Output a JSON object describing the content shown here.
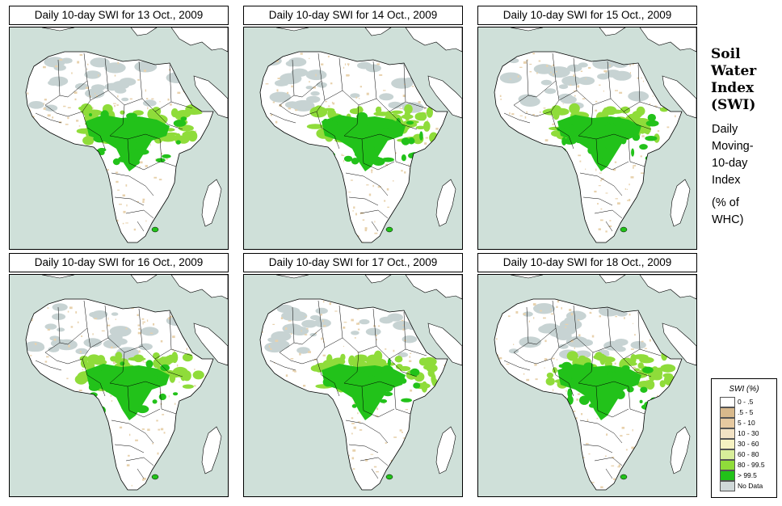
{
  "panels": [
    {
      "title": "Daily 10-day SWI for  13 Oct., 2009"
    },
    {
      "title": "Daily 10-day SWI for  14 Oct., 2009"
    },
    {
      "title": "Daily 10-day SWI for  15 Oct., 2009"
    },
    {
      "title": "Daily 10-day SWI for  16 Oct., 2009"
    },
    {
      "title": "Daily 10-day SWI for  17 Oct., 2009"
    },
    {
      "title": "Daily 10-day SWI for  18 Oct., 2009"
    }
  ],
  "side": {
    "title_lines": [
      "Soil",
      "Water",
      "Index",
      "(SWI)"
    ],
    "desc_lines": [
      "Daily",
      "Moving-",
      "10-day",
      "Index"
    ],
    "units_lines": [
      "(% of",
      " WHC)"
    ]
  },
  "legend": {
    "title": "SWI (%)",
    "items": [
      {
        "label": "0 - .5",
        "color": "#ffffff"
      },
      {
        "label": ".5 - 5",
        "color": "#d8b98c"
      },
      {
        "label": "5 - 10",
        "color": "#e6c9a0"
      },
      {
        "label": "10 - 30",
        "color": "#f2e2c4"
      },
      {
        "label": "30 - 60",
        "color": "#f6f2c2"
      },
      {
        "label": "60 - 80",
        "color": "#d8ee9a"
      },
      {
        "label": "80 - 99.5",
        "color": "#8fdc3a"
      },
      {
        "label": "> 99.5",
        "color": "#22c21a"
      },
      {
        "label": "No Data",
        "color": "#cfd8d8"
      }
    ]
  },
  "colors": {
    "ocean": "#cfe0d9",
    "land": "#ffffff",
    "dry": "#e8d2ad",
    "wet": "#8fdc3a",
    "saturated": "#22c21a",
    "nodata": "#c7d3d3"
  }
}
